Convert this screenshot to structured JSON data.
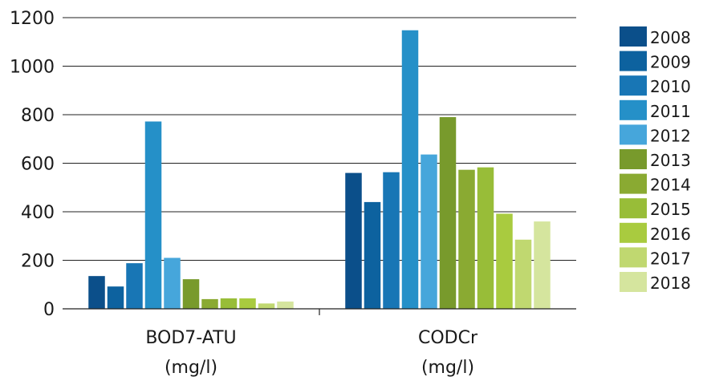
{
  "chart_data": {
    "type": "bar",
    "categories": [
      {
        "line1": "BOD7-ATU",
        "line2": "(mg/l)"
      },
      {
        "line1": "CODCr",
        "line2": "(mg/l)"
      }
    ],
    "series": [
      {
        "name": "2008",
        "color": "#0b4f8a",
        "values": [
          135,
          560
        ]
      },
      {
        "name": "2009",
        "color": "#0d629f",
        "values": [
          92,
          440
        ]
      },
      {
        "name": "2010",
        "color": "#1876b5",
        "values": [
          188,
          563
        ]
      },
      {
        "name": "2011",
        "color": "#2590c8",
        "values": [
          772,
          1148
        ]
      },
      {
        "name": "2012",
        "color": "#46a6db",
        "values": [
          210,
          636
        ]
      },
      {
        "name": "2013",
        "color": "#789a2c",
        "values": [
          122,
          790
        ]
      },
      {
        "name": "2014",
        "color": "#8aaa32",
        "values": [
          40,
          573
        ]
      },
      {
        "name": "2015",
        "color": "#98bd38",
        "values": [
          43,
          583
        ]
      },
      {
        "name": "2016",
        "color": "#a9cb3f",
        "values": [
          43,
          392
        ]
      },
      {
        "name": "2017",
        "color": "#c0d870",
        "values": [
          22,
          285
        ]
      },
      {
        "name": "2018",
        "color": "#d5e59e",
        "values": [
          30,
          360
        ]
      }
    ],
    "ylim": [
      0,
      1200
    ],
    "yticks": [
      0,
      200,
      400,
      600,
      800,
      1000,
      1200
    ],
    "grid": true,
    "legend": "right"
  }
}
